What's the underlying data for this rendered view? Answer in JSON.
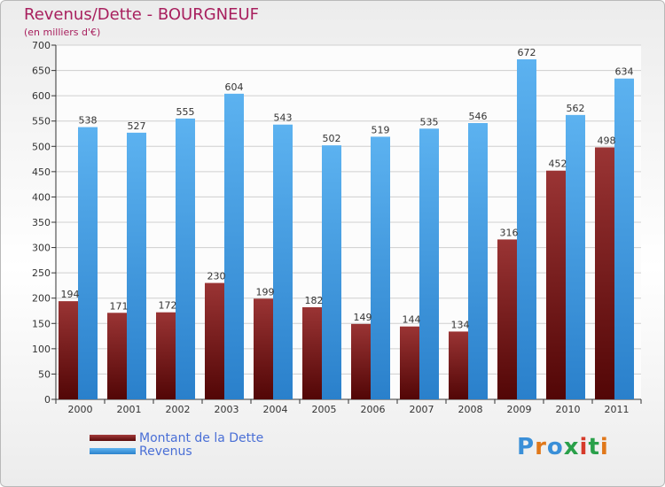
{
  "header": {
    "title": "Revenus/Dette - BOURGNEUF",
    "subtitle": "(en milliers d'€)"
  },
  "chart_data": {
    "type": "bar",
    "title": "Revenus/Dette - BOURGNEUF",
    "ylabel": "(en milliers d'€)",
    "xlabel": "",
    "categories": [
      "2000",
      "2001",
      "2002",
      "2003",
      "2004",
      "2005",
      "2006",
      "2007",
      "2008",
      "2009",
      "2010",
      "2011"
    ],
    "series": [
      {
        "name": "Montant de la Dette",
        "color": "#7a1d1d",
        "values": [
          194,
          171,
          172,
          230,
          199,
          182,
          149,
          144,
          134,
          316,
          452,
          498
        ]
      },
      {
        "name": "Revenus",
        "color": "#3d9ae0",
        "values": [
          538,
          527,
          555,
          604,
          543,
          502,
          519,
          535,
          546,
          672,
          562,
          634
        ]
      }
    ],
    "ylim": [
      0,
      700
    ],
    "yticks": [
      0,
      50,
      100,
      150,
      200,
      250,
      300,
      350,
      400,
      450,
      500,
      550,
      600,
      650,
      700
    ],
    "grid": true,
    "legend_position": "bottom-left"
  },
  "legend": {
    "debt_label": "Montant de la Dette",
    "revenue_label": "Revenus"
  },
  "logo": {
    "text": "Proxiti"
  }
}
